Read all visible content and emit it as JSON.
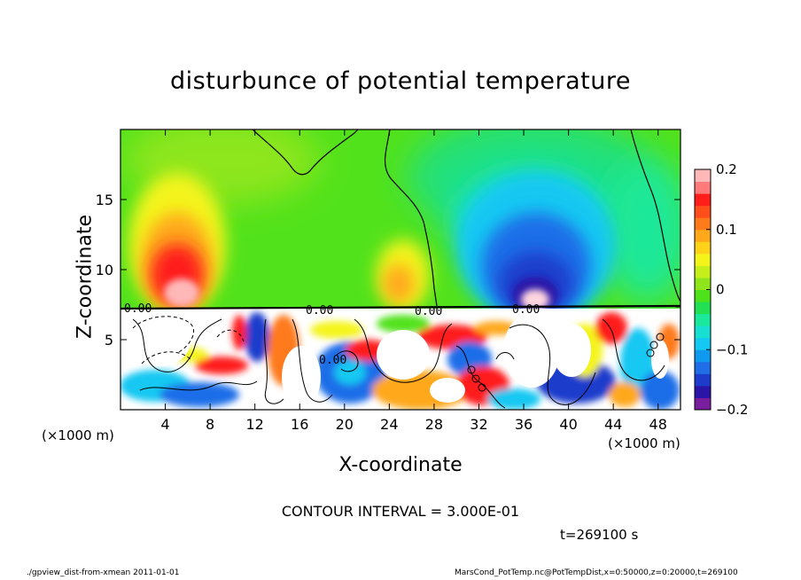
{
  "title": "disturbunce of potential temperature",
  "chart_data": {
    "type": "heatmap",
    "title": "disturbunce of potential temperature",
    "xlabel": "X-coordinate",
    "ylabel": "Z-coordinate",
    "x_unit": "(×1000 m)",
    "xlim": [
      0,
      50
    ],
    "ylim": [
      0,
      20
    ],
    "x_ticks": [
      4,
      8,
      12,
      16,
      20,
      24,
      28,
      32,
      36,
      40,
      44,
      48
    ],
    "y_ticks": [
      5,
      10,
      15
    ],
    "colorbar": {
      "range": [
        -0.2,
        0.2
      ],
      "ticks": [
        {
          "value": 0.2,
          "label": "0.2"
        },
        {
          "value": 0.1,
          "label": "0.1"
        },
        {
          "value": 0,
          "label": "0"
        },
        {
          "value": -0.1,
          "label": "−0.1"
        },
        {
          "value": -0.2,
          "label": "−0.2"
        }
      ],
      "colors": [
        "#7a1ea0",
        "#2b14a8",
        "#1e3ccc",
        "#1f6ee8",
        "#0f9af0",
        "#13c8f2",
        "#17e0d2",
        "#1ae89a",
        "#22e052",
        "#4ee21a",
        "#8ee61a",
        "#c6ee1a",
        "#f4f41a",
        "#ffd21a",
        "#ffa81a",
        "#ff7a1a",
        "#ff4e1a",
        "#ff1e1a",
        "#ff7a7a",
        "#ffb8b8"
      ]
    },
    "features": [
      {
        "x": 5,
        "z": 9.5,
        "value": 0.18
      },
      {
        "x": 24.5,
        "z": 9,
        "value": 0.1
      },
      {
        "x": 36.5,
        "z": 9.5,
        "value": -0.2
      },
      {
        "x": 36,
        "z": 13,
        "value": -0.08
      }
    ],
    "contour_labels": [
      "0.00",
      "0.00",
      "0.00",
      "0.00",
      "0.00"
    ],
    "contour_interval": "CONTOUR INTERVAL = 3.000E-01",
    "time": "t=269100 s"
  },
  "footer": {
    "left": "./gpview_dist-from-xmean  2011-01-01",
    "right": "MarsCond_PotTemp.nc@PotTempDist,x=0:50000,z=0:20000,t=269100"
  }
}
